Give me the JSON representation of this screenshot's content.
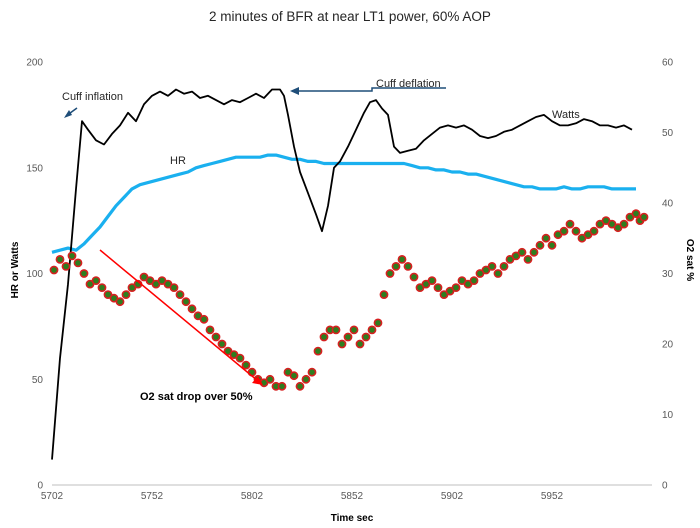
{
  "chart_data": {
    "type": "line",
    "title": "2 minutes of BFR at near LT1 power, 60% AOP",
    "xlabel": "Time sec",
    "ylabel": "HR or Watts",
    "y2label": "O2 sat %",
    "xlim": [
      5702,
      6002
    ],
    "ylim": [
      0,
      200
    ],
    "y2lim": [
      0,
      60
    ],
    "x_ticks": [
      "5702",
      "5752",
      "5802",
      "5852",
      "5902",
      "5952"
    ],
    "y_ticks": [
      "0",
      "50",
      "100",
      "150",
      "200"
    ],
    "y2_ticks": [
      "0",
      "10",
      "20",
      "30",
      "40",
      "50",
      "60"
    ],
    "colors": {
      "watts": "#000000",
      "hr": "#1ab0ef",
      "o2_fill": "#2e7d1f",
      "o2_edge": "#d62020",
      "arrow_red": "#ff0000",
      "arrow_blue": "#1f4e79"
    },
    "series": [
      {
        "name": "Watts",
        "kind": "line",
        "axis": "left",
        "points": [
          [
            5702,
            12
          ],
          [
            5706,
            60
          ],
          [
            5710,
            95
          ],
          [
            5714,
            140
          ],
          [
            5717,
            172
          ],
          [
            5720,
            168
          ],
          [
            5724,
            163
          ],
          [
            5728,
            161
          ],
          [
            5732,
            166
          ],
          [
            5736,
            170
          ],
          [
            5740,
            176
          ],
          [
            5744,
            172
          ],
          [
            5748,
            180
          ],
          [
            5752,
            184
          ],
          [
            5756,
            186
          ],
          [
            5760,
            184
          ],
          [
            5764,
            187
          ],
          [
            5768,
            185
          ],
          [
            5772,
            186
          ],
          [
            5776,
            183
          ],
          [
            5780,
            184
          ],
          [
            5784,
            182
          ],
          [
            5788,
            180
          ],
          [
            5792,
            182
          ],
          [
            5796,
            181
          ],
          [
            5800,
            183
          ],
          [
            5804,
            185
          ],
          [
            5808,
            183
          ],
          [
            5812,
            187
          ],
          [
            5816,
            187
          ],
          [
            5818,
            184
          ],
          [
            5820,
            175
          ],
          [
            5823,
            160
          ],
          [
            5826,
            148
          ],
          [
            5830,
            138
          ],
          [
            5834,
            128
          ],
          [
            5837,
            120
          ],
          [
            5840,
            132
          ],
          [
            5843,
            150
          ],
          [
            5846,
            153
          ],
          [
            5850,
            160
          ],
          [
            5854,
            168
          ],
          [
            5858,
            176
          ],
          [
            5861,
            181
          ],
          [
            5864,
            182
          ],
          [
            5867,
            178
          ],
          [
            5870,
            175
          ],
          [
            5873,
            160
          ],
          [
            5876,
            157
          ],
          [
            5880,
            158
          ],
          [
            5884,
            159
          ],
          [
            5888,
            163
          ],
          [
            5892,
            166
          ],
          [
            5896,
            169
          ],
          [
            5900,
            170
          ],
          [
            5904,
            169
          ],
          [
            5908,
            170
          ],
          [
            5912,
            168
          ],
          [
            5916,
            165
          ],
          [
            5920,
            164
          ],
          [
            5924,
            165
          ],
          [
            5928,
            167
          ],
          [
            5932,
            168
          ],
          [
            5936,
            170
          ],
          [
            5940,
            172
          ],
          [
            5944,
            174
          ],
          [
            5948,
            175
          ],
          [
            5952,
            172
          ],
          [
            5956,
            170
          ],
          [
            5960,
            170
          ],
          [
            5964,
            171
          ],
          [
            5968,
            173
          ],
          [
            5972,
            172
          ],
          [
            5976,
            170
          ],
          [
            5980,
            170
          ],
          [
            5984,
            169
          ],
          [
            5988,
            170
          ],
          [
            5992,
            168
          ]
        ]
      },
      {
        "name": "HR",
        "kind": "line",
        "axis": "left",
        "points": [
          [
            5702,
            110
          ],
          [
            5706,
            111
          ],
          [
            5710,
            112
          ],
          [
            5714,
            111
          ],
          [
            5718,
            114
          ],
          [
            5722,
            118
          ],
          [
            5726,
            122
          ],
          [
            5730,
            127
          ],
          [
            5734,
            132
          ],
          [
            5738,
            136
          ],
          [
            5742,
            140
          ],
          [
            5746,
            142
          ],
          [
            5750,
            143
          ],
          [
            5754,
            144
          ],
          [
            5758,
            145
          ],
          [
            5762,
            146
          ],
          [
            5766,
            147
          ],
          [
            5770,
            148
          ],
          [
            5774,
            150
          ],
          [
            5778,
            151
          ],
          [
            5782,
            152
          ],
          [
            5786,
            153
          ],
          [
            5790,
            154
          ],
          [
            5794,
            155
          ],
          [
            5798,
            155
          ],
          [
            5802,
            155
          ],
          [
            5806,
            155
          ],
          [
            5810,
            156
          ],
          [
            5814,
            156
          ],
          [
            5818,
            155
          ],
          [
            5822,
            154
          ],
          [
            5826,
            154
          ],
          [
            5830,
            153
          ],
          [
            5834,
            153
          ],
          [
            5838,
            152
          ],
          [
            5842,
            152
          ],
          [
            5846,
            152
          ],
          [
            5850,
            152
          ],
          [
            5854,
            152
          ],
          [
            5858,
            152
          ],
          [
            5862,
            152
          ],
          [
            5866,
            152
          ],
          [
            5870,
            152
          ],
          [
            5874,
            152
          ],
          [
            5878,
            152
          ],
          [
            5882,
            151
          ],
          [
            5886,
            150
          ],
          [
            5890,
            150
          ],
          [
            5894,
            149
          ],
          [
            5898,
            149
          ],
          [
            5902,
            148
          ],
          [
            5906,
            148
          ],
          [
            5910,
            147
          ],
          [
            5914,
            147
          ],
          [
            5918,
            146
          ],
          [
            5922,
            145
          ],
          [
            5926,
            144
          ],
          [
            5930,
            143
          ],
          [
            5934,
            142
          ],
          [
            5938,
            141
          ],
          [
            5942,
            141
          ],
          [
            5946,
            140
          ],
          [
            5950,
            140
          ],
          [
            5954,
            140
          ],
          [
            5958,
            141
          ],
          [
            5962,
            140
          ],
          [
            5966,
            140
          ],
          [
            5970,
            141
          ],
          [
            5974,
            141
          ],
          [
            5978,
            141
          ],
          [
            5982,
            140
          ],
          [
            5986,
            140
          ],
          [
            5990,
            140
          ],
          [
            5994,
            140
          ]
        ]
      },
      {
        "name": "O2 sat %",
        "kind": "scatter",
        "axis": "right",
        "points": [
          [
            5703,
            30.5
          ],
          [
            5706,
            32
          ],
          [
            5709,
            31
          ],
          [
            5712,
            32.5
          ],
          [
            5715,
            31.5
          ],
          [
            5718,
            30
          ],
          [
            5721,
            28.5
          ],
          [
            5724,
            29
          ],
          [
            5727,
            28
          ],
          [
            5730,
            27
          ],
          [
            5733,
            26.5
          ],
          [
            5736,
            26
          ],
          [
            5739,
            27
          ],
          [
            5742,
            28
          ],
          [
            5745,
            28.5
          ],
          [
            5748,
            29.5
          ],
          [
            5751,
            29
          ],
          [
            5754,
            28.5
          ],
          [
            5757,
            29
          ],
          [
            5760,
            28.5
          ],
          [
            5763,
            28
          ],
          [
            5766,
            27
          ],
          [
            5769,
            26
          ],
          [
            5772,
            25
          ],
          [
            5775,
            24
          ],
          [
            5778,
            23.5
          ],
          [
            5781,
            22
          ],
          [
            5784,
            21
          ],
          [
            5787,
            20
          ],
          [
            5790,
            19
          ],
          [
            5793,
            18.5
          ],
          [
            5796,
            18
          ],
          [
            5799,
            17
          ],
          [
            5802,
            16
          ],
          [
            5805,
            15
          ],
          [
            5808,
            14.5
          ],
          [
            5811,
            15
          ],
          [
            5814,
            14
          ],
          [
            5817,
            14
          ],
          [
            5820,
            16
          ],
          [
            5823,
            15.5
          ],
          [
            5826,
            14
          ],
          [
            5829,
            15
          ],
          [
            5832,
            16
          ],
          [
            5835,
            19
          ],
          [
            5838,
            21
          ],
          [
            5841,
            22
          ],
          [
            5844,
            22
          ],
          [
            5847,
            20
          ],
          [
            5850,
            21
          ],
          [
            5853,
            22
          ],
          [
            5856,
            20
          ],
          [
            5859,
            21
          ],
          [
            5862,
            22
          ],
          [
            5865,
            23
          ],
          [
            5868,
            27
          ],
          [
            5871,
            30
          ],
          [
            5874,
            31
          ],
          [
            5877,
            32
          ],
          [
            5880,
            31
          ],
          [
            5883,
            29.5
          ],
          [
            5886,
            28
          ],
          [
            5889,
            28.5
          ],
          [
            5892,
            29
          ],
          [
            5895,
            28
          ],
          [
            5898,
            27
          ],
          [
            5901,
            27.5
          ],
          [
            5904,
            28
          ],
          [
            5907,
            29
          ],
          [
            5910,
            28.5
          ],
          [
            5913,
            29
          ],
          [
            5916,
            30
          ],
          [
            5919,
            30.5
          ],
          [
            5922,
            31
          ],
          [
            5925,
            30
          ],
          [
            5928,
            31
          ],
          [
            5931,
            32
          ],
          [
            5934,
            32.5
          ],
          [
            5937,
            33
          ],
          [
            5940,
            32
          ],
          [
            5943,
            33
          ],
          [
            5946,
            34
          ],
          [
            5949,
            35
          ],
          [
            5952,
            34
          ],
          [
            5955,
            35.5
          ],
          [
            5958,
            36
          ],
          [
            5961,
            37
          ],
          [
            5964,
            36
          ],
          [
            5967,
            35
          ],
          [
            5970,
            35.5
          ],
          [
            5973,
            36
          ],
          [
            5976,
            37
          ],
          [
            5979,
            37.5
          ],
          [
            5982,
            37
          ],
          [
            5985,
            36.5
          ],
          [
            5988,
            37
          ],
          [
            5991,
            38
          ],
          [
            5994,
            38.5
          ],
          [
            5996,
            37.5
          ],
          [
            5998,
            38
          ]
        ]
      }
    ],
    "annotations": {
      "cuff_inflation": "Cuff inflation",
      "cuff_deflation": "Cuff deflation",
      "hr_label": "HR",
      "watts_label": "Watts",
      "o2_drop": "O2 sat drop over 50%"
    }
  }
}
